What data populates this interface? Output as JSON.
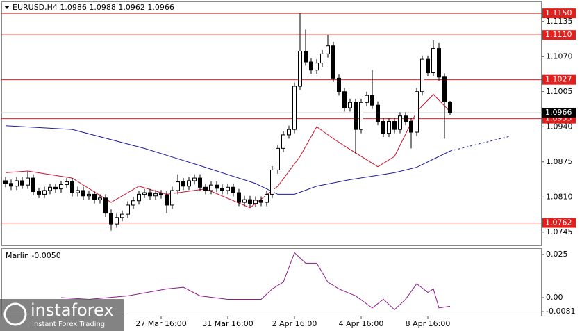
{
  "chart_data": [
    {
      "type": "candlestick",
      "title": "EURUSD,H4  1.0986 1.0988 1.0962 1.0966",
      "categories": [
        null,
        null,
        null,
        null,
        null,
        null,
        null,
        null,
        null,
        null,
        null,
        null,
        null,
        null,
        null,
        null,
        null,
        null,
        null,
        null,
        null,
        null,
        null,
        null,
        null,
        null,
        null,
        null,
        "27 Mar 16:00",
        null,
        null,
        null,
        null,
        null,
        null,
        null,
        null,
        null,
        null,
        null,
        "31 Mar 16:00",
        null,
        null,
        null,
        null,
        null,
        null,
        null,
        null,
        null,
        null,
        null,
        "2 Apr 16:00",
        null,
        null,
        null,
        null,
        null,
        null,
        null,
        null,
        null,
        null,
        null,
        "4 Apr 16:00",
        null,
        null,
        null,
        null,
        null,
        null,
        null,
        null,
        null,
        null,
        null,
        "8 Apr 16:00",
        null,
        null,
        null,
        null
      ],
      "open": [
        1.084,
        1.0835,
        1.083,
        1.084,
        1.0832,
        1.0845,
        1.082,
        1.0815,
        1.0822,
        1.0828,
        1.0825,
        1.0833,
        1.0838,
        1.0818,
        1.0822,
        1.0812,
        1.0815,
        1.0805,
        1.0808,
        1.078,
        1.076,
        1.0772,
        1.0778,
        1.0795,
        1.0803,
        1.0815,
        1.0818,
        1.0812,
        1.0816,
        1.0814,
        1.0795,
        1.0822,
        1.0838,
        1.083,
        1.084,
        1.0845,
        1.0828,
        1.0822,
        1.0832,
        1.0826,
        1.0822,
        1.0828,
        1.0818,
        1.08,
        1.0805,
        1.0798,
        1.0804,
        1.08,
        1.0815,
        1.086,
        1.09,
        1.0925,
        1.0935,
        1.1015,
        1.108,
        1.106,
        1.1045,
        1.1058,
        1.1075,
        1.109,
        1.103,
        1.1005,
        1.0975,
        1.0985,
        1.0935,
        1.0985,
        1.0998,
        1.098,
        1.095,
        1.0928,
        1.095,
        1.0935,
        1.096,
        1.095,
        1.093,
        1.1005,
        1.1065,
        1.104,
        1.1085,
        1.1032,
        1.0986
      ],
      "high": [
        1.0847,
        1.0842,
        1.0847,
        1.0847,
        1.0857,
        1.0852,
        1.0827,
        1.0829,
        1.0835,
        1.0835,
        1.084,
        1.0845,
        1.0845,
        1.0829,
        1.0829,
        1.0822,
        1.0822,
        1.0815,
        1.0815,
        1.0787,
        1.0779,
        1.0785,
        1.0802,
        1.081,
        1.0822,
        1.0825,
        1.0825,
        1.0823,
        1.0823,
        1.0821,
        1.0829,
        1.0852,
        1.0845,
        1.0847,
        1.0852,
        1.0852,
        1.0835,
        1.0839,
        1.0839,
        1.0833,
        1.0835,
        1.0835,
        1.0825,
        1.0812,
        1.0812,
        1.0811,
        1.0811,
        1.0822,
        1.0867,
        1.0907,
        1.0932,
        1.0942,
        1.1022,
        1.115,
        1.112,
        1.1067,
        1.1065,
        1.1082,
        1.111,
        1.1097,
        1.1037,
        1.1012,
        1.0992,
        1.0992,
        1.0992,
        1.1005,
        1.1045,
        1.0987,
        1.0957,
        1.0957,
        1.0957,
        1.0967,
        1.0967,
        1.0957,
        1.1012,
        1.1072,
        1.1072,
        1.11,
        1.1095,
        1.1039,
        1.0988
      ],
      "low": [
        1.0828,
        1.0823,
        1.0823,
        1.0825,
        1.0825,
        1.0813,
        1.0808,
        1.0808,
        1.0815,
        1.0818,
        1.0818,
        1.0826,
        1.0811,
        1.0811,
        1.0805,
        1.0805,
        1.0798,
        1.0798,
        1.0773,
        1.0748,
        1.0753,
        1.0765,
        1.0771,
        1.0788,
        1.0796,
        1.0808,
        1.0805,
        1.0805,
        1.0807,
        1.078,
        1.0788,
        1.0815,
        1.0823,
        1.0823,
        1.0833,
        1.0821,
        1.0815,
        1.0815,
        1.0819,
        1.0815,
        1.0815,
        1.0811,
        1.0793,
        1.0793,
        1.0791,
        1.0791,
        1.0793,
        1.0793,
        1.0808,
        1.0853,
        1.0893,
        1.0918,
        1.0928,
        1.1008,
        1.1053,
        1.1038,
        1.1038,
        1.1051,
        1.1068,
        1.1023,
        1.0998,
        1.0968,
        1.0968,
        1.089,
        1.0928,
        1.0978,
        1.0973,
        1.0943,
        1.0921,
        1.0921,
        1.0928,
        1.0928,
        1.0943,
        1.09,
        1.0923,
        1.0998,
        1.1033,
        1.1033,
        1.1025,
        1.0918,
        1.0962
      ],
      "close": [
        1.0835,
        1.083,
        1.084,
        1.0832,
        1.0845,
        1.082,
        1.0815,
        1.0822,
        1.0828,
        1.0825,
        1.0833,
        1.0838,
        1.0818,
        1.0822,
        1.0812,
        1.0815,
        1.0805,
        1.0808,
        1.078,
        1.076,
        1.0772,
        1.0778,
        1.0795,
        1.0803,
        1.0815,
        1.0818,
        1.0812,
        1.0816,
        1.0814,
        1.0795,
        1.0822,
        1.0838,
        1.083,
        1.084,
        1.0845,
        1.0828,
        1.0822,
        1.0832,
        1.0826,
        1.0822,
        1.0828,
        1.0818,
        1.08,
        1.0805,
        1.0798,
        1.0804,
        1.08,
        1.0815,
        1.086,
        1.09,
        1.0925,
        1.0935,
        1.1015,
        1.108,
        1.106,
        1.1045,
        1.1058,
        1.1075,
        1.109,
        1.103,
        1.1005,
        1.0975,
        1.0985,
        1.0935,
        1.0985,
        1.0998,
        1.098,
        1.095,
        1.0928,
        1.095,
        1.0935,
        1.096,
        1.095,
        1.093,
        1.1005,
        1.1065,
        1.104,
        1.1085,
        1.1032,
        1.0986,
        1.0966
      ],
      "series": [
        {
          "color": "#1c1c9c",
          "x": [
            0,
            12,
            25,
            35,
            45,
            49,
            52,
            56,
            62,
            70,
            74,
            78,
            80
          ],
          "values": [
            1.0942,
            1.0935,
            1.09,
            1.0868,
            1.0835,
            1.0815,
            1.0815,
            1.083,
            1.0842,
            1.0855,
            1.0865,
            1.0885,
            1.0895
          ]
        },
        {
          "color": "#1c1c9c",
          "dashed": true,
          "x": [
            80,
            91
          ],
          "values": [
            1.0895,
            1.0923
          ]
        },
        {
          "color": "#c8102e",
          "x": [
            0,
            4,
            12,
            19,
            24,
            29,
            36,
            44,
            49,
            53,
            56,
            59,
            62,
            67,
            70,
            74,
            77,
            80
          ],
          "values": [
            1.0855,
            1.0858,
            1.0845,
            1.08,
            1.083,
            1.0815,
            1.0825,
            1.079,
            1.083,
            1.0885,
            1.094,
            1.0918,
            1.0898,
            1.0866,
            1.0885,
            1.0968,
            1.1,
            1.0968
          ]
        }
      ],
      "levels": [
        {
          "value": 1.115,
          "label": "1.1150"
        },
        {
          "value": 1.111,
          "label": "1.1110"
        },
        {
          "value": 1.1027,
          "label": "1.1027"
        },
        {
          "value": 1.0955,
          "label": "1.0955"
        },
        {
          "value": 1.0762,
          "label": "1.0762"
        }
      ],
      "level_color": "#e0201c",
      "current_price": {
        "value": 1.0966,
        "label": "1.0966"
      },
      "xlim": [
        -0.75,
        96.5
      ],
      "ylim": [
        1.0719,
        1.1172
      ],
      "yticks": [
        1.1135,
        {
          "value": 1.107,
          "label": "1.1070"
        },
        1.1005,
        {
          "value": 1.094,
          "label": "1.0940"
        },
        1.0875,
        {
          "value": 1.081,
          "label": "1.0810"
        },
        1.0745
      ]
    },
    {
      "type": "line",
      "title": "Marlin -0.0050",
      "series": [
        {
          "color": "#8b1a8b",
          "x": [
            10,
            15,
            22,
            29,
            32,
            35,
            40,
            46,
            48,
            50,
            52,
            54,
            56,
            58,
            60,
            63,
            66,
            68,
            70,
            72,
            74,
            76,
            77,
            78,
            80
          ],
          "values": [
            0.0,
            -0.001,
            0.001,
            0.005,
            0.006,
            0.001,
            -0.001,
            -0.001,
            0.005,
            0.009,
            0.026,
            0.02,
            0.02,
            0.009,
            0.005,
            0.001,
            -0.006,
            -0.001,
            -0.007,
            -0.001,
            0.008,
            0.003,
            0.005,
            -0.006,
            -0.005
          ]
        }
      ],
      "xlim": [
        -0.75,
        96.5
      ],
      "ylim": [
        -0.0109,
        0.0282
      ],
      "yticks": [
        0.025,
        {
          "value": 0,
          "label": "0.00"
        },
        -0.0081
      ]
    }
  ],
  "logo": {
    "name": "instaforex",
    "tagline": "Instant Forex Trading"
  }
}
